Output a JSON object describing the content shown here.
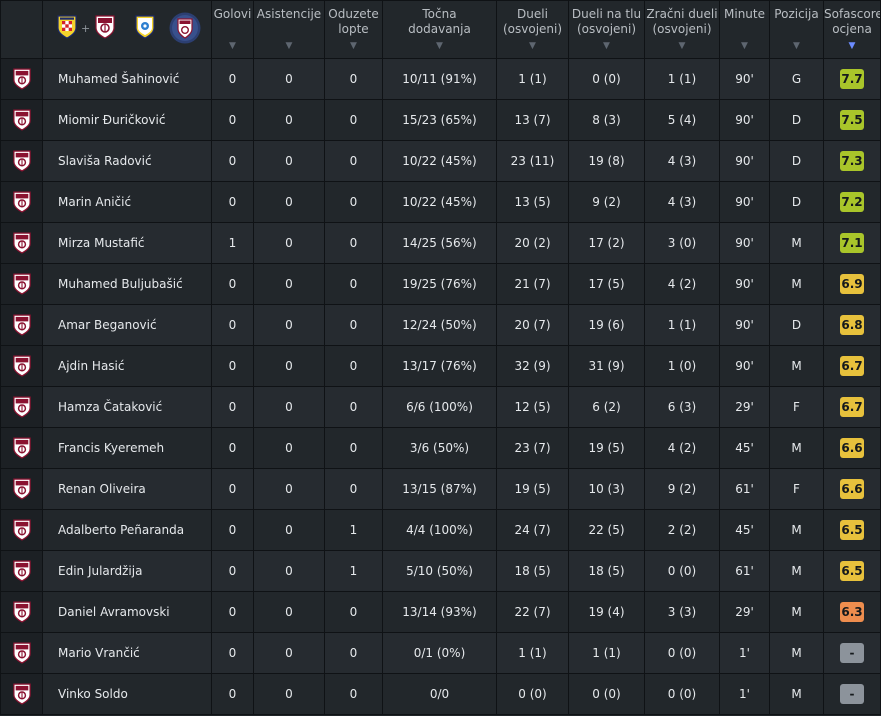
{
  "header": {
    "columns": [
      {
        "key": "goals",
        "label": "Golovi"
      },
      {
        "key": "assists",
        "label": "Asistencije"
      },
      {
        "key": "tackles",
        "label": "Oduzete\nlopte"
      },
      {
        "key": "passes",
        "label": "Točna\ndodavanja"
      },
      {
        "key": "duels",
        "label": "Dueli\n(osvojeni)"
      },
      {
        "key": "ground",
        "label": "Dueli na tlu\n(osvojeni)"
      },
      {
        "key": "aerial",
        "label": "Zračni dueli\n(osvojeni)"
      },
      {
        "key": "minutes",
        "label": "Minute"
      },
      {
        "key": "position",
        "label": "Pozicija"
      },
      {
        "key": "rating",
        "label": "Sofascore\nocjena"
      }
    ],
    "plus": "+",
    "logo_icons": [
      "hnk-shield-icon",
      "fk-sarajevo-crest-icon",
      "bosnia-shield-icon",
      "fk-sarajevo-crest-icon"
    ]
  },
  "colors": {
    "rating_green": "#a9c52a",
    "rating_yellow": "#e7c13c",
    "rating_orange": "#ee8d4e",
    "rating_none": "#8c939b",
    "crest_red": "#8a1230"
  },
  "players": [
    {
      "name": "Muhamed Šahinović",
      "goals": "0",
      "assists": "0",
      "tackles": "0",
      "passes": "10/11 (91%)",
      "duels": "1 (1)",
      "ground": "0 (0)",
      "aerial": "1 (1)",
      "minutes": "90'",
      "position": "G",
      "rating": "7.7"
    },
    {
      "name": "Miomir Đuričković",
      "goals": "0",
      "assists": "0",
      "tackles": "0",
      "passes": "15/23 (65%)",
      "duels": "13 (7)",
      "ground": "8 (3)",
      "aerial": "5 (4)",
      "minutes": "90'",
      "position": "D",
      "rating": "7.5"
    },
    {
      "name": "Slaviša Radović",
      "goals": "0",
      "assists": "0",
      "tackles": "0",
      "passes": "10/22 (45%)",
      "duels": "23 (11)",
      "ground": "19 (8)",
      "aerial": "4 (3)",
      "minutes": "90'",
      "position": "D",
      "rating": "7.3"
    },
    {
      "name": "Marin Aničić",
      "goals": "0",
      "assists": "0",
      "tackles": "0",
      "passes": "10/22 (45%)",
      "duels": "13 (5)",
      "ground": "9 (2)",
      "aerial": "4 (3)",
      "minutes": "90'",
      "position": "D",
      "rating": "7.2"
    },
    {
      "name": "Mirza Mustafić",
      "goals": "1",
      "assists": "0",
      "tackles": "0",
      "passes": "14/25 (56%)",
      "duels": "20 (2)",
      "ground": "17 (2)",
      "aerial": "3 (0)",
      "minutes": "90'",
      "position": "M",
      "rating": "7.1"
    },
    {
      "name": "Muhamed Buljubašić",
      "goals": "0",
      "assists": "0",
      "tackles": "0",
      "passes": "19/25 (76%)",
      "duels": "21 (7)",
      "ground": "17 (5)",
      "aerial": "4 (2)",
      "minutes": "90'",
      "position": "M",
      "rating": "6.9"
    },
    {
      "name": "Amar Beganović",
      "goals": "0",
      "assists": "0",
      "tackles": "0",
      "passes": "12/24 (50%)",
      "duels": "20 (7)",
      "ground": "19 (6)",
      "aerial": "1 (1)",
      "minutes": "90'",
      "position": "D",
      "rating": "6.8"
    },
    {
      "name": "Ajdin Hasić",
      "goals": "0",
      "assists": "0",
      "tackles": "0",
      "passes": "13/17 (76%)",
      "duels": "32 (9)",
      "ground": "31 (9)",
      "aerial": "1 (0)",
      "minutes": "90'",
      "position": "M",
      "rating": "6.7"
    },
    {
      "name": "Hamza Čataković",
      "goals": "0",
      "assists": "0",
      "tackles": "0",
      "passes": "6/6 (100%)",
      "duels": "12 (5)",
      "ground": "6 (2)",
      "aerial": "6 (3)",
      "minutes": "29'",
      "position": "F",
      "rating": "6.7"
    },
    {
      "name": "Francis Kyeremeh",
      "goals": "0",
      "assists": "0",
      "tackles": "0",
      "passes": "3/6 (50%)",
      "duels": "23 (7)",
      "ground": "19 (5)",
      "aerial": "4 (2)",
      "minutes": "45'",
      "position": "M",
      "rating": "6.6"
    },
    {
      "name": "Renan Oliveira",
      "goals": "0",
      "assists": "0",
      "tackles": "0",
      "passes": "13/15 (87%)",
      "duels": "19 (5)",
      "ground": "10 (3)",
      "aerial": "9 (2)",
      "minutes": "61'",
      "position": "F",
      "rating": "6.6"
    },
    {
      "name": "Adalberto Peñaranda",
      "goals": "0",
      "assists": "0",
      "tackles": "1",
      "passes": "4/4 (100%)",
      "duels": "24 (7)",
      "ground": "22 (5)",
      "aerial": "2 (2)",
      "minutes": "45'",
      "position": "M",
      "rating": "6.5"
    },
    {
      "name": "Edin Julardžija",
      "goals": "0",
      "assists": "0",
      "tackles": "1",
      "passes": "5/10 (50%)",
      "duels": "18 (5)",
      "ground": "18 (5)",
      "aerial": "0 (0)",
      "minutes": "61'",
      "position": "M",
      "rating": "6.5"
    },
    {
      "name": "Daniel Avramovski",
      "goals": "0",
      "assists": "0",
      "tackles": "0",
      "passes": "13/14 (93%)",
      "duels": "22 (7)",
      "ground": "19 (4)",
      "aerial": "3 (3)",
      "minutes": "29'",
      "position": "M",
      "rating": "6.3"
    },
    {
      "name": "Mario Vrančić",
      "goals": "0",
      "assists": "0",
      "tackles": "0",
      "passes": "0/1 (0%)",
      "duels": "1 (1)",
      "ground": "1 (1)",
      "aerial": "0 (0)",
      "minutes": "1'",
      "position": "M",
      "rating": "-"
    },
    {
      "name": "Vinko Soldo",
      "goals": "0",
      "assists": "0",
      "tackles": "0",
      "passes": "0/0",
      "duels": "0 (0)",
      "ground": "0 (0)",
      "aerial": "0 (0)",
      "minutes": "1'",
      "position": "M",
      "rating": "-"
    }
  ]
}
